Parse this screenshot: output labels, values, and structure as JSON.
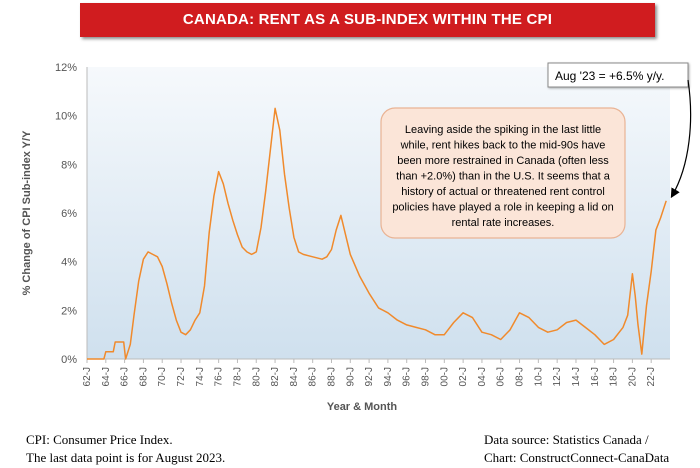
{
  "title": "CANADA: RENT AS A SUB-INDEX WITHIN THE CPI",
  "colors": {
    "banner": "#d01c1f",
    "line": "#f08a2c",
    "plot_top": "#f6f9fc",
    "plot_bottom": "#cfe0ee",
    "callout_fill": "#fbe5d8",
    "callout_border": "#e9b394"
  },
  "chart_data": {
    "type": "line",
    "xlabel": "Year & Month",
    "ylabel": "% Change of CPI Sub-index Y/Y",
    "ylim": [
      0,
      12
    ],
    "y_ticks": [
      "0%",
      "2%",
      "4%",
      "6%",
      "8%",
      "10%",
      "12%"
    ],
    "x_ticks": [
      "62-J",
      "64-J",
      "66-J",
      "68-J",
      "70-J",
      "72-J",
      "74-J",
      "76-J",
      "78-J",
      "80-J",
      "82-J",
      "84-J",
      "86-J",
      "88-J",
      "90-J",
      "92-J",
      "94-J",
      "96-J",
      "98-J",
      "00-J",
      "02-J",
      "04-J",
      "06-J",
      "08-J",
      "10-J",
      "12-J",
      "14-J",
      "16-J",
      "18-J",
      "20-J",
      "22-J"
    ],
    "grid": false,
    "series": [
      {
        "points": [
          [
            1962.0,
            0.0
          ],
          [
            1963.8,
            0.0
          ],
          [
            1964.0,
            0.3
          ],
          [
            1964.8,
            0.3
          ],
          [
            1965.0,
            0.7
          ],
          [
            1965.9,
            0.7
          ],
          [
            1966.1,
            0.0
          ],
          [
            1966.6,
            0.6
          ],
          [
            1967.0,
            1.8
          ],
          [
            1967.5,
            3.2
          ],
          [
            1968.0,
            4.1
          ],
          [
            1968.5,
            4.4
          ],
          [
            1969.0,
            4.3
          ],
          [
            1969.5,
            4.2
          ],
          [
            1970.0,
            3.8
          ],
          [
            1970.5,
            3.1
          ],
          [
            1971.0,
            2.3
          ],
          [
            1971.5,
            1.6
          ],
          [
            1972.0,
            1.1
          ],
          [
            1972.5,
            1.0
          ],
          [
            1973.0,
            1.2
          ],
          [
            1973.5,
            1.6
          ],
          [
            1974.0,
            1.9
          ],
          [
            1974.5,
            3.0
          ],
          [
            1975.0,
            5.2
          ],
          [
            1975.5,
            6.7
          ],
          [
            1976.0,
            7.7
          ],
          [
            1976.5,
            7.2
          ],
          [
            1977.0,
            6.4
          ],
          [
            1977.5,
            5.7
          ],
          [
            1978.0,
            5.1
          ],
          [
            1978.5,
            4.6
          ],
          [
            1979.0,
            4.4
          ],
          [
            1979.5,
            4.3
          ],
          [
            1980.0,
            4.4
          ],
          [
            1980.5,
            5.4
          ],
          [
            1981.0,
            6.9
          ],
          [
            1981.5,
            8.6
          ],
          [
            1982.0,
            10.3
          ],
          [
            1982.5,
            9.4
          ],
          [
            1983.0,
            7.6
          ],
          [
            1983.5,
            6.2
          ],
          [
            1984.0,
            5.0
          ],
          [
            1984.5,
            4.4
          ],
          [
            1985.0,
            4.3
          ],
          [
            1986.0,
            4.2
          ],
          [
            1987.0,
            4.1
          ],
          [
            1987.5,
            4.2
          ],
          [
            1988.0,
            4.5
          ],
          [
            1988.5,
            5.3
          ],
          [
            1989.0,
            5.9
          ],
          [
            1989.5,
            5.1
          ],
          [
            1990.0,
            4.3
          ],
          [
            1991.0,
            3.4
          ],
          [
            1992.0,
            2.7
          ],
          [
            1993.0,
            2.1
          ],
          [
            1994.0,
            1.9
          ],
          [
            1995.0,
            1.6
          ],
          [
            1996.0,
            1.4
          ],
          [
            1997.0,
            1.3
          ],
          [
            1998.0,
            1.2
          ],
          [
            1999.0,
            1.0
          ],
          [
            2000.0,
            1.0
          ],
          [
            2001.0,
            1.5
          ],
          [
            2002.0,
            1.9
          ],
          [
            2003.0,
            1.7
          ],
          [
            2004.0,
            1.1
          ],
          [
            2005.0,
            1.0
          ],
          [
            2006.0,
            0.8
          ],
          [
            2007.0,
            1.2
          ],
          [
            2008.0,
            1.9
          ],
          [
            2009.0,
            1.7
          ],
          [
            2010.0,
            1.3
          ],
          [
            2011.0,
            1.1
          ],
          [
            2012.0,
            1.2
          ],
          [
            2013.0,
            1.5
          ],
          [
            2014.0,
            1.6
          ],
          [
            2015.0,
            1.3
          ],
          [
            2016.0,
            1.0
          ],
          [
            2017.0,
            0.6
          ],
          [
            2018.0,
            0.8
          ],
          [
            2019.0,
            1.3
          ],
          [
            2019.5,
            1.8
          ],
          [
            2020.0,
            3.5
          ],
          [
            2020.3,
            2.6
          ],
          [
            2020.6,
            1.4
          ],
          [
            2021.0,
            0.2
          ],
          [
            2021.5,
            2.2
          ],
          [
            2022.0,
            3.6
          ],
          [
            2022.5,
            5.3
          ],
          [
            2023.0,
            5.8
          ],
          [
            2023.6,
            6.5
          ]
        ]
      }
    ],
    "annotations": [
      {
        "id": "last_point",
        "text": "Aug '23 = +6.5% y/y."
      },
      {
        "id": "comment",
        "text": "Leaving aside the spiking in the last little while, rent hikes back to the mid-90s have been more restrained in Canada (often less than +2.0%) than in the U.S. It seems that a history of actual or threatened rent control policies have played a role in keeping a lid on rental rate increases."
      }
    ]
  },
  "footer": {
    "left_line1": "CPI: Consumer Price Index.",
    "left_line2": "The last data point is for August 2023.",
    "right_line1": "Data source: Statistics Canada /",
    "right_line2": "Chart: ConstructConnect-CanaData"
  }
}
